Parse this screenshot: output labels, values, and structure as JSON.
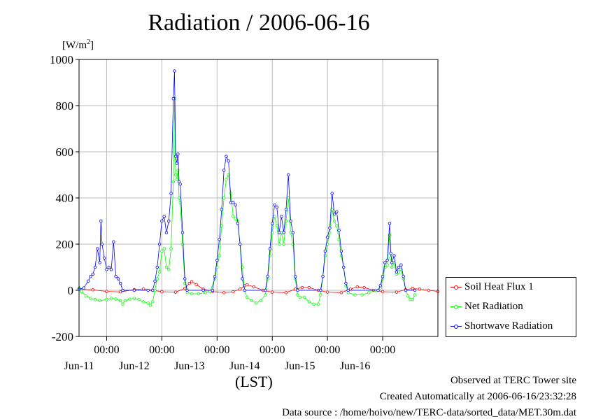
{
  "chart_data": {
    "type": "line",
    "title": "Radiation / 2006-06-16",
    "ylabel": "[W/m2]",
    "xlabel": "(LST)",
    "ylim": [
      -200,
      1000
    ],
    "yticks": [
      "1000",
      "800",
      "600",
      "400",
      "200",
      "0",
      "-200"
    ],
    "xlim": [
      "2006-06-10 12:00",
      "2006-06-16 24:00"
    ],
    "xtick_time_label": "00:00",
    "xtick_day_labels": [
      "Jun-11",
      "Jun-12",
      "Jun-13",
      "Jun-14",
      "Jun-15",
      "Jun-16"
    ],
    "grid": true,
    "legend_position": "lower-right-outside",
    "series": [
      {
        "name": "Soil Heat Flux 1",
        "color": "#ff0000",
        "points": [
          [
            "06-10 12:00",
            5
          ],
          [
            "06-10 18:00",
            2
          ],
          [
            "06-11 00:00",
            -5
          ],
          [
            "06-11 06:00",
            -7
          ],
          [
            "06-11 12:00",
            3
          ],
          [
            "06-11 16:00",
            6
          ],
          [
            "06-11 20:00",
            0
          ],
          [
            "06-12 00:00",
            -6
          ],
          [
            "06-12 06:00",
            -8
          ],
          [
            "06-12 10:00",
            8
          ],
          [
            "06-12 12:00",
            30
          ],
          [
            "06-12 13:00",
            38
          ],
          [
            "06-12 15:00",
            25
          ],
          [
            "06-12 18:00",
            5
          ],
          [
            "06-12 22:00",
            -5
          ],
          [
            "06-13 03:00",
            -10
          ],
          [
            "06-13 07:00",
            -6
          ],
          [
            "06-13 10:00",
            5
          ],
          [
            "06-13 12:00",
            20
          ],
          [
            "06-13 13:00",
            24
          ],
          [
            "06-13 16:00",
            15
          ],
          [
            "06-13 20:00",
            0
          ],
          [
            "06-14 00:00",
            -8
          ],
          [
            "06-14 06:00",
            -10
          ],
          [
            "06-14 10:00",
            5
          ],
          [
            "06-14 13:00",
            12
          ],
          [
            "06-14 16:00",
            12
          ],
          [
            "06-14 20:00",
            0
          ],
          [
            "06-15 00:00",
            -8
          ],
          [
            "06-15 06:00",
            -10
          ],
          [
            "06-15 10:00",
            5
          ],
          [
            "06-15 13:00",
            15
          ],
          [
            "06-15 16:00",
            12
          ],
          [
            "06-15 20:00",
            0
          ],
          [
            "06-16 00:00",
            -6
          ],
          [
            "06-16 06:00",
            -8
          ],
          [
            "06-16 10:00",
            3
          ],
          [
            "06-16 13:00",
            8
          ],
          [
            "06-16 16:00",
            5
          ],
          [
            "06-16 20:00",
            0
          ],
          [
            "06-16 24:00",
            -5
          ]
        ]
      },
      {
        "name": "Net Radiation",
        "color": "#00ff00",
        "points": [
          [
            "06-10 12:00",
            10
          ],
          [
            "06-10 13:00",
            -5
          ],
          [
            "06-10 15:00",
            -25
          ],
          [
            "06-10 17:00",
            -35
          ],
          [
            "06-10 19:00",
            -40
          ],
          [
            "06-10 21:00",
            -45
          ],
          [
            "06-11 00:00",
            -40
          ],
          [
            "06-11 02:00",
            -35
          ],
          [
            "06-11 04:00",
            -38
          ],
          [
            "06-11 06:00",
            -45
          ],
          [
            "06-11 07:00",
            -60
          ],
          [
            "06-11 08:00",
            -45
          ],
          [
            "06-11 10:00",
            -38
          ],
          [
            "06-11 12:00",
            -35
          ],
          [
            "06-11 14:00",
            -40
          ],
          [
            "06-11 16:00",
            -50
          ],
          [
            "06-11 18:00",
            -55
          ],
          [
            "06-11 19:00",
            -65
          ],
          [
            "06-11 20:00",
            -50
          ],
          [
            "06-11 21:00",
            0
          ],
          [
            "06-11 22:00",
            50
          ],
          [
            "06-11 23:00",
            80
          ],
          [
            "06-12 00:00",
            170
          ],
          [
            "06-12 01:00",
            180
          ],
          [
            "06-12 02:00",
            100
          ],
          [
            "06-12 03:00",
            90
          ],
          [
            "06-12 04:00",
            180
          ],
          [
            "06-12 05:00",
            470
          ],
          [
            "06-12 05:30",
            830
          ],
          [
            "06-12 06:00",
            500
          ],
          [
            "06-12 06:30",
            480
          ],
          [
            "06-12 07:00",
            520
          ],
          [
            "06-12 07:30",
            400
          ],
          [
            "06-12 08:00",
            380
          ],
          [
            "06-12 09:00",
            200
          ],
          [
            "06-12 10:00",
            30
          ],
          [
            "06-12 11:00",
            -10
          ],
          [
            "06-12 13:00",
            -15
          ],
          [
            "06-12 16:00",
            -15
          ],
          [
            "06-12 19:00",
            -10
          ],
          [
            "06-12 21:00",
            -5
          ],
          [
            "06-12 23:00",
            50
          ],
          [
            "06-13 00:00",
            100
          ],
          [
            "06-13 01:00",
            150
          ],
          [
            "06-13 02:00",
            280
          ],
          [
            "06-13 03:00",
            400
          ],
          [
            "06-13 04:00",
            480
          ],
          [
            "06-13 05:00",
            500
          ],
          [
            "06-13 06:00",
            420
          ],
          [
            "06-13 07:00",
            320
          ],
          [
            "06-13 08:00",
            310
          ],
          [
            "06-13 09:00",
            300
          ],
          [
            "06-13 10:00",
            200
          ],
          [
            "06-13 11:00",
            100
          ],
          [
            "06-13 12:00",
            0
          ],
          [
            "06-13 13:00",
            -30
          ],
          [
            "06-13 15:00",
            -45
          ],
          [
            "06-13 17:00",
            -55
          ],
          [
            "06-13 19:00",
            -45
          ],
          [
            "06-13 21:00",
            -20
          ],
          [
            "06-13 22:00",
            50
          ],
          [
            "06-13 23:00",
            150
          ],
          [
            "06-14 00:00",
            250
          ],
          [
            "06-14 01:00",
            320
          ],
          [
            "06-14 02:00",
            280
          ],
          [
            "06-14 03:00",
            200
          ],
          [
            "06-14 04:00",
            250
          ],
          [
            "06-14 05:00",
            200
          ],
          [
            "06-14 06:00",
            300
          ],
          [
            "06-14 07:00",
            400
          ],
          [
            "06-14 08:00",
            250
          ],
          [
            "06-14 09:00",
            200
          ],
          [
            "06-14 10:00",
            50
          ],
          [
            "06-14 11:00",
            -20
          ],
          [
            "06-14 12:00",
            -30
          ],
          [
            "06-14 14:00",
            -30
          ],
          [
            "06-14 16:00",
            -50
          ],
          [
            "06-14 18:00",
            -60
          ],
          [
            "06-14 20:00",
            -60
          ],
          [
            "06-14 21:00",
            -20
          ],
          [
            "06-14 22:00",
            60
          ],
          [
            "06-14 23:00",
            150
          ],
          [
            "06-15 00:00",
            200
          ],
          [
            "06-15 01:00",
            250
          ],
          [
            "06-15 02:00",
            350
          ],
          [
            "06-15 03:00",
            300
          ],
          [
            "06-15 04:00",
            280
          ],
          [
            "06-15 05:00",
            220
          ],
          [
            "06-15 06:00",
            150
          ],
          [
            "06-15 07:00",
            100
          ],
          [
            "06-15 08:00",
            20
          ],
          [
            "06-15 09:00",
            -10
          ],
          [
            "06-15 12:00",
            -20
          ],
          [
            "06-15 15:00",
            -20
          ],
          [
            "06-15 18:00",
            -10
          ],
          [
            "06-15 21:00",
            0
          ],
          [
            "06-15 23:00",
            10
          ],
          [
            "06-16 00:00",
            50
          ],
          [
            "06-16 01:00",
            100
          ],
          [
            "06-16 02:00",
            110
          ],
          [
            "06-16 03:00",
            240
          ],
          [
            "06-16 03:30",
            140
          ],
          [
            "06-16 04:00",
            100
          ],
          [
            "06-16 05:00",
            120
          ],
          [
            "06-16 06:00",
            70
          ],
          [
            "06-16 07:00",
            80
          ],
          [
            "06-16 08:00",
            90
          ],
          [
            "06-16 09:00",
            50
          ],
          [
            "06-16 10:00",
            0
          ],
          [
            "06-16 11:00",
            -25
          ],
          [
            "06-16 12:00",
            -40
          ],
          [
            "06-16 13:00",
            -40
          ],
          [
            "06-16 14:00",
            -20
          ]
        ]
      },
      {
        "name": "Shortwave Radiation",
        "color": "#0000ff",
        "points": [
          [
            "06-10 12:00",
            5
          ],
          [
            "06-10 14:00",
            10
          ],
          [
            "06-10 16:00",
            40
          ],
          [
            "06-10 17:00",
            60
          ],
          [
            "06-10 18:00",
            70
          ],
          [
            "06-10 19:00",
            100
          ],
          [
            "06-10 20:00",
            180
          ],
          [
            "06-10 21:00",
            120
          ],
          [
            "06-10 21:30",
            300
          ],
          [
            "06-10 22:00",
            200
          ],
          [
            "06-10 23:00",
            140
          ],
          [
            "06-11 00:00",
            90
          ],
          [
            "06-11 01:00",
            100
          ],
          [
            "06-11 02:00",
            90
          ],
          [
            "06-11 03:00",
            210
          ],
          [
            "06-11 04:00",
            60
          ],
          [
            "06-11 05:00",
            50
          ],
          [
            "06-11 06:00",
            30
          ],
          [
            "06-11 07:00",
            0
          ],
          [
            "06-11 12:00",
            0
          ],
          [
            "06-11 18:00",
            0
          ],
          [
            "06-11 20:00",
            0
          ],
          [
            "06-11 21:00",
            40
          ],
          [
            "06-11 22:00",
            100
          ],
          [
            "06-11 23:00",
            200
          ],
          [
            "06-12 00:00",
            300
          ],
          [
            "06-12 01:00",
            320
          ],
          [
            "06-12 02:00",
            250
          ],
          [
            "06-12 03:00",
            300
          ],
          [
            "06-12 04:00",
            420
          ],
          [
            "06-12 05:00",
            830
          ],
          [
            "06-12 05:30",
            950
          ],
          [
            "06-12 06:00",
            580
          ],
          [
            "06-12 06:30",
            550
          ],
          [
            "06-12 07:00",
            590
          ],
          [
            "06-12 07:30",
            470
          ],
          [
            "06-12 08:00",
            460
          ],
          [
            "06-12 09:00",
            250
          ],
          [
            "06-12 10:00",
            50
          ],
          [
            "06-12 11:00",
            0
          ],
          [
            "06-12 18:00",
            0
          ],
          [
            "06-12 22:00",
            0
          ],
          [
            "06-12 23:00",
            60
          ],
          [
            "06-13 00:00",
            130
          ],
          [
            "06-13 01:00",
            220
          ],
          [
            "06-13 02:00",
            350
          ],
          [
            "06-13 03:00",
            520
          ],
          [
            "06-13 04:00",
            580
          ],
          [
            "06-13 05:00",
            560
          ],
          [
            "06-13 06:00",
            380
          ],
          [
            "06-13 07:00",
            380
          ],
          [
            "06-13 08:00",
            370
          ],
          [
            "06-13 09:00",
            290
          ],
          [
            "06-13 10:00",
            200
          ],
          [
            "06-13 11:00",
            50
          ],
          [
            "06-13 12:00",
            0
          ],
          [
            "06-13 21:00",
            0
          ],
          [
            "06-13 22:00",
            60
          ],
          [
            "06-13 23:00",
            180
          ],
          [
            "06-14 00:00",
            290
          ],
          [
            "06-14 01:00",
            370
          ],
          [
            "06-14 02:00",
            360
          ],
          [
            "06-14 03:00",
            250
          ],
          [
            "06-14 04:00",
            320
          ],
          [
            "06-14 05:00",
            250
          ],
          [
            "06-14 06:00",
            350
          ],
          [
            "06-14 07:00",
            500
          ],
          [
            "06-14 08:00",
            300
          ],
          [
            "06-14 09:00",
            250
          ],
          [
            "06-14 10:00",
            60
          ],
          [
            "06-14 11:00",
            0
          ],
          [
            "06-14 21:00",
            0
          ],
          [
            "06-14 22:00",
            60
          ],
          [
            "06-14 23:00",
            170
          ],
          [
            "06-15 00:00",
            230
          ],
          [
            "06-15 01:00",
            270
          ],
          [
            "06-15 02:00",
            420
          ],
          [
            "06-15 03:00",
            330
          ],
          [
            "06-15 04:00",
            340
          ],
          [
            "06-15 05:00",
            260
          ],
          [
            "06-15 06:00",
            170
          ],
          [
            "06-15 07:00",
            100
          ],
          [
            "06-15 08:00",
            30
          ],
          [
            "06-15 09:00",
            0
          ],
          [
            "06-15 22:00",
            0
          ],
          [
            "06-15 23:00",
            20
          ],
          [
            "06-16 00:00",
            60
          ],
          [
            "06-16 01:00",
            120
          ],
          [
            "06-16 02:00",
            130
          ],
          [
            "06-16 03:00",
            290
          ],
          [
            "06-16 03:30",
            160
          ],
          [
            "06-16 04:00",
            120
          ],
          [
            "06-16 05:00",
            150
          ],
          [
            "06-16 06:00",
            80
          ],
          [
            "06-16 07:00",
            100
          ],
          [
            "06-16 08:00",
            110
          ],
          [
            "06-16 09:00",
            60
          ],
          [
            "06-16 10:00",
            0
          ],
          [
            "06-16 14:00",
            0
          ]
        ]
      }
    ]
  },
  "footer": {
    "observed": "Observed at TERC Tower site",
    "created": "Created Automatically at 2006-06-16/23:32:28",
    "source": "Data source : /home/hoivo/new/TERC-data/sorted_data/MET.30m.dat"
  }
}
